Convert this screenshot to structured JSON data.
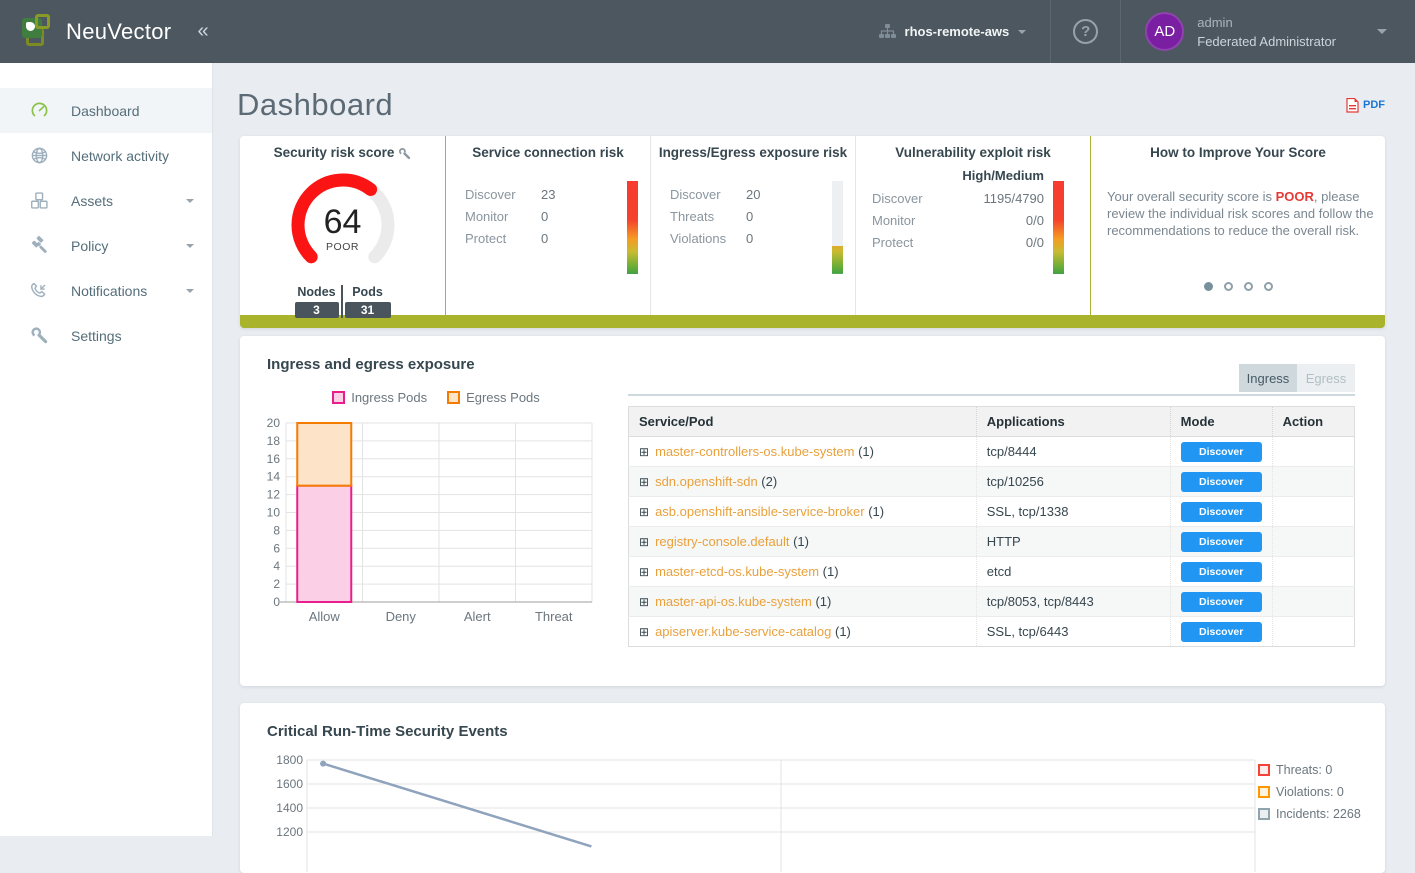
{
  "navbar": {
    "brand": "NeuVector",
    "collapse_icon": "«",
    "cluster": {
      "name": "rhos-remote-aws"
    },
    "help_glyph": "?",
    "user": {
      "initials": "AD",
      "name": "admin",
      "role": "Federated Administrator"
    }
  },
  "sidebar": {
    "items": [
      {
        "label": "Dashboard",
        "icon": "gauge-icon",
        "active": true,
        "has_submenu": false
      },
      {
        "label": "Network activity",
        "icon": "globe-icon",
        "active": false,
        "has_submenu": false
      },
      {
        "label": "Assets",
        "icon": "cubes-icon",
        "active": false,
        "has_submenu": true
      },
      {
        "label": "Policy",
        "icon": "gavel-icon",
        "active": false,
        "has_submenu": true
      },
      {
        "label": "Notifications",
        "icon": "phone-icon",
        "active": false,
        "has_submenu": true
      },
      {
        "label": "Settings",
        "icon": "wrench-icon",
        "active": false,
        "has_submenu": false
      }
    ]
  },
  "page": {
    "title": "Dashboard",
    "pdf_label": "PDF"
  },
  "risk_summary": {
    "score_panel": {
      "title": "Security risk score",
      "score": 64,
      "score_max": 100,
      "rating": "POOR",
      "nodes_label": "Nodes",
      "nodes_value": "3",
      "pods_label": "Pods",
      "pods_value": "31"
    },
    "panels": [
      {
        "title": "Service connection risk",
        "header": null,
        "align": "left",
        "rows": [
          {
            "label": "Discover",
            "value": "23"
          },
          {
            "label": "Monitor",
            "value": "0"
          },
          {
            "label": "Protect",
            "value": "0"
          }
        ],
        "bar_fill": 1.0
      },
      {
        "title": "Ingress/Egress exposure risk",
        "header": null,
        "align": "left",
        "rows": [
          {
            "label": "Discover",
            "value": "20"
          },
          {
            "label": "Threats",
            "value": "0"
          },
          {
            "label": "Violations",
            "value": "0"
          }
        ],
        "bar_fill": 0.3
      },
      {
        "title": "Vulnerability exploit risk",
        "header": "High/Medium",
        "align": "right",
        "rows": [
          {
            "label": "Discover",
            "value": "1195/4790"
          },
          {
            "label": "Monitor",
            "value": "0/0"
          },
          {
            "label": "Protect",
            "value": "0/0"
          }
        ],
        "bar_fill": 1.0
      }
    ],
    "improve_panel": {
      "title": "How to Improve Your Score",
      "text_before": "Your overall security score is ",
      "highlight": "POOR",
      "text_after": ", please review the individual risk scores and follow the recommendations to reduce the overall risk.",
      "dots": 4,
      "active_dot": 0
    }
  },
  "exposure_section": {
    "title": "Ingress and egress exposure",
    "tabs": [
      {
        "label": "Ingress",
        "active": true
      },
      {
        "label": "Egress",
        "active": false
      }
    ],
    "table": {
      "columns": [
        "Service/Pod",
        "Applications",
        "Mode",
        "Action"
      ],
      "rows": [
        {
          "service": "master-controllers-os.kube-system",
          "count": "(1)",
          "applications": "tcp/8444",
          "mode": "Discover"
        },
        {
          "service": "sdn.openshift-sdn",
          "count": "(2)",
          "applications": "tcp/10256",
          "mode": "Discover"
        },
        {
          "service": "asb.openshift-ansible-service-broker",
          "count": "(1)",
          "applications": "SSL, tcp/1338",
          "mode": "Discover"
        },
        {
          "service": "registry-console.default",
          "count": "(1)",
          "applications": "HTTP",
          "mode": "Discover"
        },
        {
          "service": "master-etcd-os.kube-system",
          "count": "(1)",
          "applications": "etcd",
          "mode": "Discover"
        },
        {
          "service": "master-api-os.kube-system",
          "count": "(1)",
          "applications": "tcp/8053, tcp/8443",
          "mode": "Discover"
        },
        {
          "service": "apiserver.kube-service-catalog",
          "count": "(1)",
          "applications": "SSL, tcp/6443",
          "mode": "Discover"
        }
      ]
    }
  },
  "events_section": {
    "title": "Critical Run-Time Security Events",
    "legend": [
      {
        "label": "Threats: 0",
        "color": "#f44336",
        "fill": "#fdecea"
      },
      {
        "label": "Violations: 0",
        "color": "#ff9800",
        "fill": "#fff3e0"
      },
      {
        "label": "Incidents: 2268",
        "color": "#90a4ae",
        "fill": "#eceff1"
      }
    ]
  },
  "chart_data": [
    {
      "type": "gauge",
      "title": "Security risk score",
      "value": 64,
      "max": 100,
      "label": "POOR",
      "arc_color": "#fa1414",
      "track_color": "#ebebeb",
      "extra": {
        "Nodes": 3,
        "Pods": 31
      }
    },
    {
      "type": "bar",
      "stacked": true,
      "title": "Ingress and egress exposure",
      "categories": [
        "Allow",
        "Deny",
        "Alert",
        "Threat"
      ],
      "series": [
        {
          "name": "Ingress Pods",
          "values": [
            13,
            0,
            0,
            0
          ],
          "stroke": "#e91e8c",
          "fill": "#fbd0e6"
        },
        {
          "name": "Egress Pods",
          "values": [
            7,
            0,
            0,
            0
          ],
          "stroke": "#f57c00",
          "fill": "#fde3c8"
        }
      ],
      "ylim": [
        0,
        20
      ],
      "ytick_step": 2,
      "grid": true,
      "legend_position": "top"
    },
    {
      "type": "line",
      "title": "Critical Run-Time Security Events",
      "yticks_visible": [
        1800,
        1600,
        1400,
        1200
      ],
      "series": [
        {
          "name": "Incidents",
          "total": 2268,
          "color": "#8fa3bd",
          "points_visible": [
            {
              "x": 0.017,
              "value": 1770
            },
            {
              "x": 0.3,
              "value": 1080
            }
          ]
        },
        {
          "name": "Threats",
          "total": 0
        },
        {
          "name": "Violations",
          "total": 0
        }
      ],
      "legend_position": "right",
      "grid": true,
      "clipped_at_bottom": true
    }
  ],
  "colors": {
    "navbar_bg": "#4d575f",
    "accent_olive": "#a9b32c",
    "link_orange": "#e9a13c",
    "button_blue": "#2196f3",
    "avatar_purple": "#7b1fa2",
    "score_red": "#fa1414",
    "poor_red": "#e53935",
    "sidebar_active_icon": "#8bc34a",
    "line_gray_blue": "#8fa3bd"
  }
}
